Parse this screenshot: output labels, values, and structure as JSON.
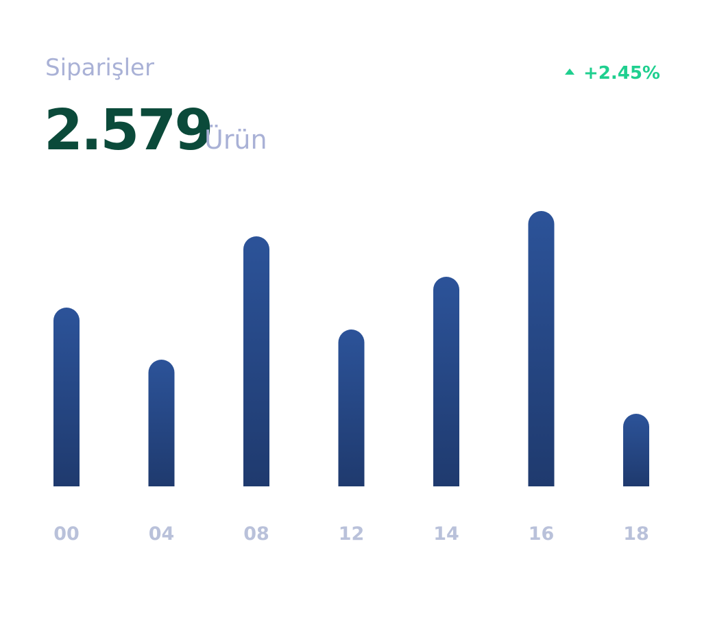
{
  "header": {
    "title": "Siparişler",
    "total": "2.579",
    "unit": "Ürün",
    "change": "+2.45%"
  },
  "chart_data": {
    "type": "bar",
    "categories": [
      "00",
      "04",
      "08",
      "12",
      "14",
      "16",
      "18"
    ],
    "values": [
      261,
      185,
      365,
      229,
      306,
      402,
      106
    ],
    "color": "#2c5399"
  }
}
